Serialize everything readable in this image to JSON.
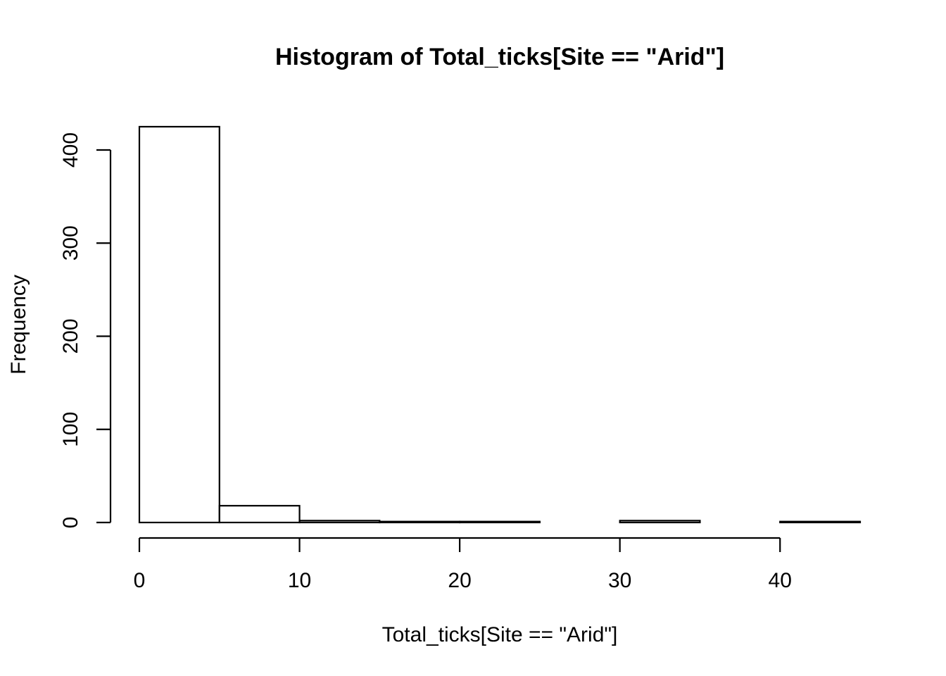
{
  "chart_data": {
    "type": "bar",
    "subtype": "histogram",
    "title": "Histogram of Total_ticks[Site == \"Arid\"]",
    "xlabel": "Total_ticks[Site == \"Arid\"]",
    "ylabel": "Frequency",
    "bins": [
      {
        "x0": 0,
        "x1": 5,
        "count": 425
      },
      {
        "x0": 5,
        "x1": 10,
        "count": 18
      },
      {
        "x0": 10,
        "x1": 15,
        "count": 2
      },
      {
        "x0": 15,
        "x1": 20,
        "count": 1
      },
      {
        "x0": 20,
        "x1": 25,
        "count": 1
      },
      {
        "x0": 25,
        "x1": 30,
        "count": 0
      },
      {
        "x0": 30,
        "x1": 35,
        "count": 2
      },
      {
        "x0": 35,
        "x1": 40,
        "count": 0
      },
      {
        "x0": 40,
        "x1": 45,
        "count": 1
      }
    ],
    "xlim": [
      0,
      45
    ],
    "ylim": [
      0,
      425
    ],
    "x_ticks": [
      0,
      10,
      20,
      30,
      40
    ],
    "y_ticks": [
      0,
      100,
      200,
      300,
      400
    ],
    "grid": false,
    "legend": "none"
  }
}
